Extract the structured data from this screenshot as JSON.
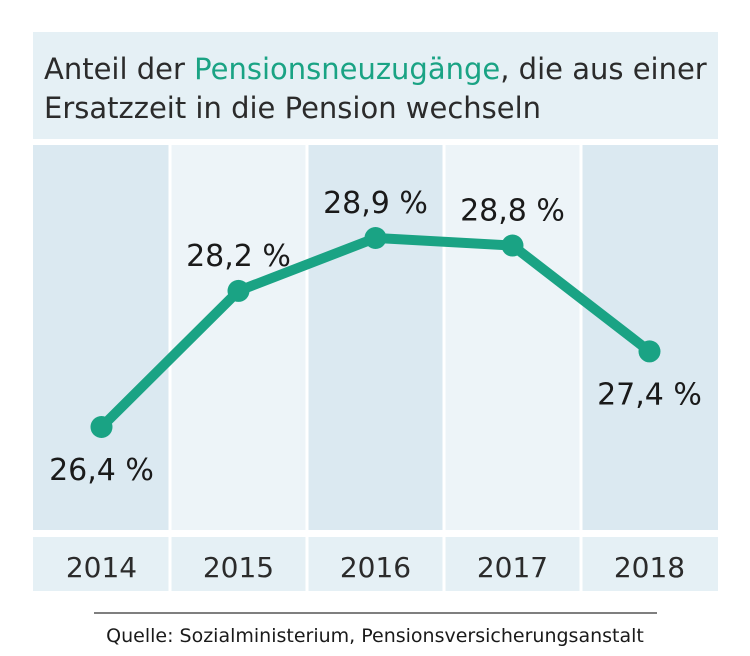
{
  "title": {
    "line1_prefix": "Anteil der ",
    "line1_highlight": "Pensionsneuzugänge",
    "line1_suffix": ", die aus einer",
    "line2": "Ersatzzeit in die Pension wechseln"
  },
  "source": "Quelle: Sozialministerium, Pensionsversicherungsanstalt",
  "colors": {
    "accent": "#1aa384",
    "title_bg": "#e5f0f5",
    "col_dark": "#dbe9f1",
    "col_light": "#edf4f8"
  },
  "chart_data": {
    "type": "line",
    "categories": [
      "2014",
      "2015",
      "2016",
      "2017",
      "2018"
    ],
    "series": [
      {
        "values": [
          26.4,
          28.2,
          28.9,
          28.8,
          27.4
        ],
        "labels": [
          "26,4 %",
          "28,2 %",
          "28,9 %",
          "28,8 %",
          "27,4 %"
        ]
      }
    ],
    "grid": false,
    "legend": "none"
  }
}
